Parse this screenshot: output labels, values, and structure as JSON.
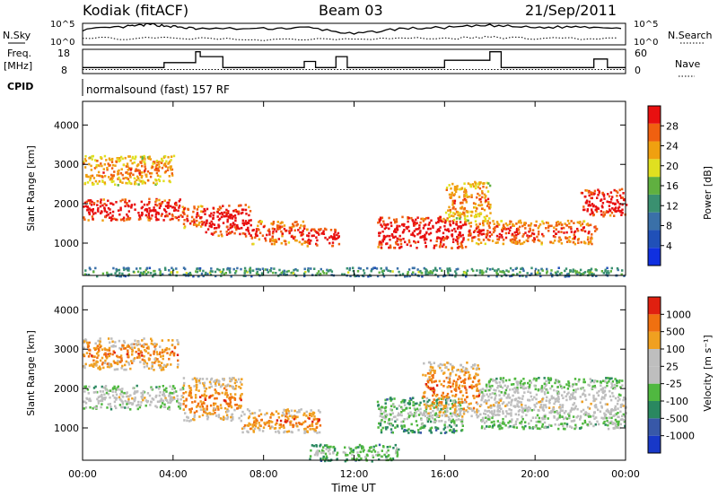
{
  "header": {
    "station": "Kodiak (fitACF)",
    "beam": "Beam 03",
    "date": "21/Sep/2011"
  },
  "summary_panels": {
    "nsky_label": "N.Sky",
    "nsky_ticks": [
      "10^5",
      "10^0"
    ],
    "nsearch_label": "N.Search",
    "nsearch_ticks": [
      "10^5",
      "10^0"
    ],
    "freq_label": "Freq.",
    "freq_unit": "[MHz]",
    "freq_ticks": [
      "18",
      "8"
    ],
    "nave_label": "Nave",
    "nave_ticks": [
      "60",
      "0"
    ],
    "cpid_label": "CPID",
    "cpid_text": "normalsound (fast) 157 RF"
  },
  "colors": {
    "power_scale": [
      "#1030e0",
      "#2050b8",
      "#3a70a8",
      "#3a9070",
      "#60b040",
      "#e0e020",
      "#f0a010",
      "#f06010",
      "#e81010"
    ],
    "velocity_scale": [
      "#1838c8",
      "#3858a8",
      "#2a8860",
      "#50b840",
      "#bebebe",
      "#bebebe",
      "#f0a020",
      "#f07010",
      "#e02010"
    ]
  },
  "chart_data": [
    {
      "type": "line",
      "title": "N.Sky / N.Search",
      "x_range": [
        "00:00",
        "24:00"
      ],
      "series": [
        {
          "name": "N.Sky",
          "x": [
            0,
            2,
            3,
            4,
            5,
            8,
            10,
            12,
            14,
            16,
            18,
            20,
            22,
            24
          ],
          "y": [
            0.7,
            0.85,
            0.95,
            0.85,
            0.75,
            0.75,
            0.8,
            0.5,
            0.75,
            0.8,
            0.9,
            0.8,
            0.85,
            0.8
          ]
        },
        {
          "name": "N.Search",
          "x": [
            0,
            4,
            8,
            12,
            16,
            18,
            20,
            24
          ],
          "y": [
            0.3,
            0.3,
            0.25,
            0.3,
            0.3,
            0.35,
            0.3,
            0.3
          ]
        }
      ]
    },
    {
      "type": "line",
      "title": "Freq. / Nave",
      "x_range": [
        "00:00",
        "24:00"
      ],
      "ylim_freq": [
        8,
        18
      ],
      "ylim_nave": [
        0,
        60
      ],
      "series": [
        {
          "name": "Freq.",
          "unit": "MHz",
          "x": [
            0,
            3.6,
            3.6,
            5.0,
            5.0,
            5.2,
            5.2,
            6.2,
            6.2,
            9.8,
            9.8,
            10.3,
            10.3,
            11.2,
            11.2,
            11.7,
            11.7,
            16.0,
            16.0,
            18.0,
            18.0,
            18.5,
            18.5,
            22.6,
            22.6,
            23.2,
            23.2,
            24
          ],
          "y": [
            10.5,
            10.5,
            12.5,
            12.5,
            17,
            17,
            15,
            15,
            10.5,
            10.5,
            13,
            13,
            10.5,
            10.5,
            15,
            15,
            10.5,
            10.5,
            13.5,
            13.5,
            17,
            17,
            10.5,
            10.5,
            14,
            14,
            10.5,
            10.5
          ]
        },
        {
          "name": "Nave",
          "x": [
            0,
            24
          ],
          "y": [
            10,
            10
          ]
        }
      ]
    },
    {
      "type": "heatmap",
      "title": "Power",
      "xlabel": "Time UT",
      "ylabel": "Slant Range [km]",
      "x_ticks": [
        "00:00",
        "04:00",
        "08:00",
        "12:00",
        "16:00",
        "20:00",
        "00:00"
      ],
      "x_range_hours": [
        0,
        24
      ],
      "y_ticks": [
        1000,
        2000,
        3000,
        4000
      ],
      "ylim": [
        180,
        4600
      ],
      "colorbar_label": "Power [dB]",
      "colorbar_ticks": [
        4,
        8,
        12,
        16,
        20,
        24,
        28
      ],
      "scatter_bands": [
        {
          "t0": 0.0,
          "t1": 4.3,
          "r0": 1600,
          "r1": 2150,
          "level": 8
        },
        {
          "t0": 0.0,
          "t1": 4.0,
          "r0": 2500,
          "r1": 3250,
          "level": 6
        },
        {
          "t0": 4.3,
          "t1": 5.3,
          "r0": 1400,
          "r1": 2000,
          "level": 7
        },
        {
          "t0": 5.3,
          "t1": 7.4,
          "r0": 1200,
          "r1": 2000,
          "level": 8
        },
        {
          "t0": 7.4,
          "t1": 9.8,
          "r0": 1000,
          "r1": 1600,
          "level": 7
        },
        {
          "t0": 9.8,
          "t1": 11.3,
          "r0": 950,
          "r1": 1400,
          "level": 8
        },
        {
          "t0": 13.0,
          "t1": 16.9,
          "r0": 900,
          "r1": 1700,
          "level": 8
        },
        {
          "t0": 16.0,
          "t1": 18.0,
          "r0": 1600,
          "r1": 2600,
          "level": 6
        },
        {
          "t0": 17.0,
          "t1": 22.7,
          "r0": 1000,
          "r1": 1600,
          "level": 7
        },
        {
          "t0": 22.0,
          "t1": 24.0,
          "r0": 1700,
          "r1": 2400,
          "level": 8
        },
        {
          "t0": 0.0,
          "t1": 24.0,
          "r0": 180,
          "r1": 400,
          "level": 3
        }
      ]
    },
    {
      "type": "heatmap",
      "title": "Velocity",
      "xlabel": "Time UT",
      "ylabel": "Slant Range [km]",
      "x_ticks": [
        "00:00",
        "04:00",
        "08:00",
        "12:00",
        "16:00",
        "20:00",
        "00:00"
      ],
      "x_range_hours": [
        0,
        24
      ],
      "y_ticks": [
        1000,
        2000,
        3000,
        4000
      ],
      "ylim": [
        180,
        4600
      ],
      "colorbar_label": "Velocity [m s⁻¹]",
      "colorbar_ticks": [
        1000,
        500,
        100,
        25,
        -25,
        -100,
        -500,
        -1000
      ],
      "scatter_bands": [
        {
          "t0": 0.0,
          "t1": 4.4,
          "r0": 1500,
          "r1": 2100,
          "level": 4
        },
        {
          "t0": 0.0,
          "t1": 4.2,
          "r0": 2500,
          "r1": 3300,
          "level": 6
        },
        {
          "t0": 4.4,
          "t1": 7.0,
          "r0": 1200,
          "r1": 2300,
          "level": 6
        },
        {
          "t0": 7.0,
          "t1": 10.5,
          "r0": 900,
          "r1": 1500,
          "level": 6
        },
        {
          "t0": 13.0,
          "t1": 16.8,
          "r0": 900,
          "r1": 1800,
          "level": 3
        },
        {
          "t0": 15.0,
          "t1": 17.5,
          "r0": 1300,
          "r1": 2700,
          "level": 6
        },
        {
          "t0": 17.5,
          "t1": 24.0,
          "r0": 1000,
          "r1": 2300,
          "level": 4
        },
        {
          "t0": 10.0,
          "t1": 14.0,
          "r0": 180,
          "r1": 600,
          "level": 3
        }
      ]
    }
  ]
}
